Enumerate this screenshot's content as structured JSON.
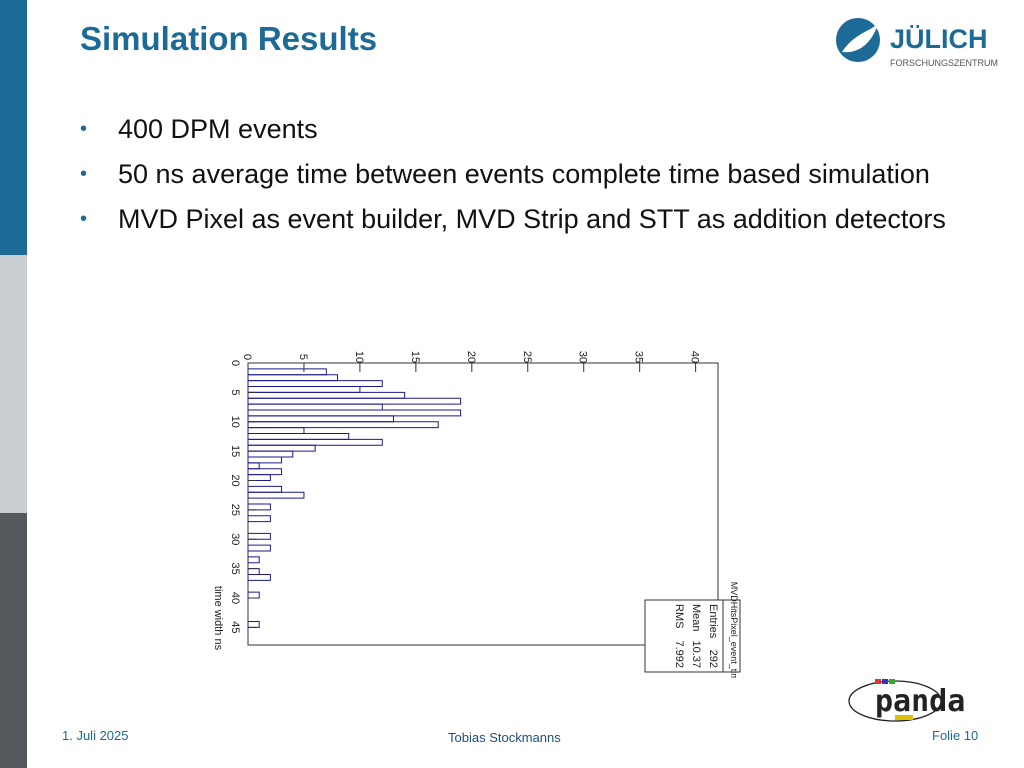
{
  "slide": {
    "title": "Simulation Results",
    "bullets": [
      "400 DPM events",
      "50 ns average time between events complete time based simulation",
      "MVD Pixel as event builder, MVD Strip and STT as addition detectors"
    ]
  },
  "logos": {
    "juelich_name": "JÜLICH",
    "juelich_sub": "FORSCHUNGSZENTRUM",
    "panda_name": "panda"
  },
  "footer": {
    "date": "1. Juli 2025",
    "author": "Tobias Stockmanns",
    "page": "Folie 10"
  },
  "chart_data": {
    "type": "bar",
    "title": "MVDHitsPixel_event_times",
    "xlabel": "time width ns",
    "ylabel": "",
    "xlim": [
      0,
      48
    ],
    "ylim": [
      0,
      42
    ],
    "x_ticks": [
      0,
      5,
      10,
      15,
      20,
      25,
      30,
      35,
      40,
      45
    ],
    "y_ticks": [
      0,
      5,
      10,
      15,
      20,
      25,
      30,
      35,
      40
    ],
    "bin_edges": [
      1,
      2,
      3,
      4,
      5,
      6,
      7,
      8,
      9,
      10,
      11,
      12,
      13,
      14,
      15,
      16,
      17,
      18,
      19,
      20,
      21,
      22,
      23,
      24,
      25,
      26,
      27,
      28,
      29,
      30,
      31,
      32,
      33,
      34,
      35,
      36,
      37,
      38,
      39,
      40,
      41,
      42,
      43,
      44,
      45,
      46,
      47
    ],
    "values": [
      7,
      8,
      12,
      10,
      14,
      19,
      12,
      19,
      13,
      17,
      5,
      9,
      12,
      6,
      4,
      3,
      1,
      3,
      2,
      0,
      3,
      5,
      0,
      2,
      0,
      2,
      0,
      0,
      2,
      0,
      2,
      0,
      1,
      0,
      1,
      2,
      0,
      0,
      1,
      0,
      0,
      0,
      0,
      1,
      0,
      0
    ],
    "stats": {
      "title": "MVDHitsPixel_event_times",
      "rows": [
        {
          "label": "Entries",
          "value": "292"
        },
        {
          "label": "Mean",
          "value": "10.37"
        },
        {
          "label": "RMS",
          "value": "7.992"
        }
      ]
    }
  },
  "colors": {
    "accent": "#1e6a97",
    "histogram": "#1a1a8a"
  }
}
